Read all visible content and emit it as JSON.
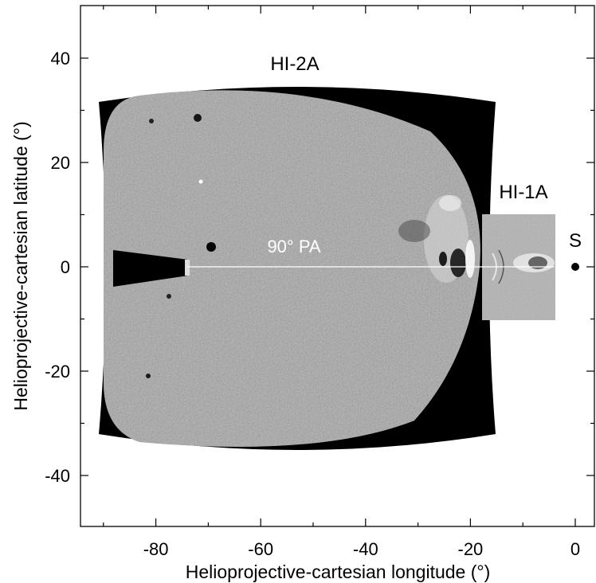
{
  "chart_data": {
    "type": "heatmap",
    "title": "",
    "xlabel": "Helioprojective-cartesian longitude (°)",
    "ylabel": "Helioprojective-cartesian latitude (°)",
    "xlim": [
      -95,
      4
    ],
    "ylim": [
      -50,
      50
    ],
    "x_ticks": [
      -80,
      -60,
      -40,
      -20,
      0
    ],
    "y_ticks": [
      -40,
      -20,
      0,
      20,
      40
    ],
    "x_tick_labels": [
      "-80",
      "-60",
      "-40",
      "-20",
      "0"
    ],
    "y_tick_labels": [
      "-40",
      "-20",
      "0",
      "20",
      "40"
    ],
    "colormap": "grayscale",
    "fields_of_view": [
      {
        "name": "HI-2A",
        "lon_range": [
          -91,
          -15
        ],
        "lat_range": [
          -36,
          36
        ]
      },
      {
        "name": "HI-1A",
        "lon_range": [
          -18,
          -4
        ],
        "lat_range": [
          -10,
          10
        ]
      }
    ],
    "position_angle_line": {
      "label": "90° PA",
      "lat": 0,
      "lon_range": [
        -74,
        -4
      ]
    },
    "sun": {
      "label": "S",
      "lon": 0,
      "lat": 0
    },
    "occulter_tip_lon": -74
  }
}
